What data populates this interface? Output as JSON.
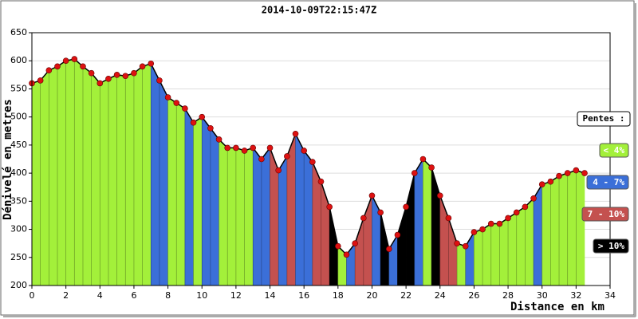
{
  "chart_data": {
    "type": "elevation",
    "title": "2014-10-09T22:15:47Z",
    "y_label": "Dénivelé en metres",
    "x_label": "Distance en km",
    "legend_title": "Pentes :",
    "legend": [
      {
        "name": "< 4%",
        "color": "#a3f03a"
      },
      {
        "name": "4 - 7%",
        "color": "#3b6fd8"
      },
      {
        "name": "7 - 10%",
        "color": "#c4514f"
      },
      {
        "name": "> 10%",
        "color": "#000000"
      }
    ],
    "x": [
      0,
      0.5,
      1,
      1.5,
      2,
      2.5,
      3,
      3.5,
      4,
      4.5,
      5,
      5.5,
      6,
      6.5,
      7,
      7.5,
      8,
      8.5,
      9,
      9.5,
      10,
      10.5,
      11,
      11.5,
      12,
      12.5,
      13,
      13.5,
      14,
      14.5,
      15,
      15.5,
      16,
      16.5,
      17,
      17.5,
      18,
      18.5,
      19,
      19.5,
      20,
      20.5,
      21,
      21.5,
      22,
      22.5,
      23,
      23.5,
      24,
      24.5,
      25,
      25.5,
      26,
      26.5,
      27,
      27.5,
      28,
      28.5,
      29,
      29.5,
      30,
      30.5,
      31,
      31.5,
      32,
      32.5
    ],
    "values": [
      560,
      565,
      583,
      590,
      600,
      603,
      590,
      578,
      560,
      568,
      575,
      573,
      578,
      590,
      595,
      565,
      535,
      525,
      515,
      490,
      500,
      480,
      460,
      445,
      445,
      440,
      445,
      425,
      445,
      405,
      430,
      470,
      440,
      420,
      385,
      340,
      270,
      255,
      275,
      320,
      360,
      330,
      265,
      290,
      340,
      400,
      425,
      410,
      360,
      320,
      275,
      270,
      295,
      300,
      310,
      310,
      320,
      330,
      340,
      355,
      380,
      385,
      395,
      400,
      405,
      400
    ],
    "segment_slope_class": [
      0,
      0,
      0,
      0,
      0,
      0,
      0,
      0,
      0,
      0,
      0,
      0,
      0,
      0,
      1,
      1,
      0,
      0,
      1,
      0,
      1,
      1,
      0,
      0,
      0,
      0,
      1,
      1,
      2,
      1,
      2,
      1,
      1,
      2,
      2,
      3,
      0,
      1,
      2,
      2,
      1,
      3,
      1,
      3,
      3,
      1,
      0,
      3,
      2,
      2,
      0,
      1,
      0,
      0,
      0,
      0,
      0,
      0,
      0,
      1,
      0,
      0,
      0,
      0,
      0
    ],
    "point_color": "#dd1111",
    "line_color": "#000000",
    "xlim": [
      0,
      34
    ],
    "ylim": [
      200,
      650
    ],
    "xticks": [
      0,
      2,
      4,
      6,
      8,
      10,
      12,
      14,
      16,
      18,
      20,
      22,
      24,
      26,
      28,
      30,
      32,
      34
    ],
    "yticks": [
      200,
      250,
      300,
      350,
      400,
      450,
      500,
      550,
      600,
      650
    ],
    "grid": true
  }
}
